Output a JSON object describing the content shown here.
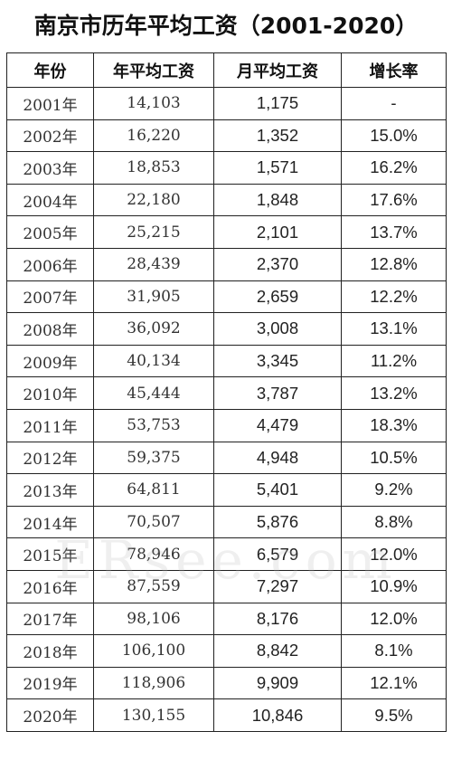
{
  "title": "南京市历年平均工资（2001-2020）",
  "headers": [
    "年份",
    "年平均工资",
    "月平均工资",
    "增长率"
  ],
  "rows": [
    {
      "year": "2001年",
      "annual": "14,103",
      "monthly": "1,175",
      "growth": "-"
    },
    {
      "year": "2002年",
      "annual": "16,220",
      "monthly": "1,352",
      "growth": "15.0%"
    },
    {
      "year": "2003年",
      "annual": "18,853",
      "monthly": "1,571",
      "growth": "16.2%"
    },
    {
      "year": "2004年",
      "annual": "22,180",
      "monthly": "1,848",
      "growth": "17.6%"
    },
    {
      "year": "2005年",
      "annual": "25,215",
      "monthly": "2,101",
      "growth": "13.7%"
    },
    {
      "year": "2006年",
      "annual": "28,439",
      "monthly": "2,370",
      "growth": "12.8%"
    },
    {
      "year": "2007年",
      "annual": "31,905",
      "monthly": "2,659",
      "growth": "12.2%"
    },
    {
      "year": "2008年",
      "annual": "36,092",
      "monthly": "3,008",
      "growth": "13.1%"
    },
    {
      "year": "2009年",
      "annual": "40,134",
      "monthly": "3,345",
      "growth": "11.2%"
    },
    {
      "year": "2010年",
      "annual": "45,444",
      "monthly": "3,787",
      "growth": "13.2%"
    },
    {
      "year": "2011年",
      "annual": "53,753",
      "monthly": "4,479",
      "growth": "18.3%"
    },
    {
      "year": "2012年",
      "annual": "59,375",
      "monthly": "4,948",
      "growth": "10.5%"
    },
    {
      "year": "2013年",
      "annual": "64,811",
      "monthly": "5,401",
      "growth": "9.2%"
    },
    {
      "year": "2014年",
      "annual": "70,507",
      "monthly": "5,876",
      "growth": "8.8%"
    },
    {
      "year": "2015年",
      "annual": "78,946",
      "monthly": "6,579",
      "growth": "12.0%"
    },
    {
      "year": "2016年",
      "annual": "87,559",
      "monthly": "7,297",
      "growth": "10.9%"
    },
    {
      "year": "2017年",
      "annual": "98,106",
      "monthly": "8,176",
      "growth": "12.0%"
    },
    {
      "year": "2018年",
      "annual": "106,100",
      "monthly": "8,842",
      "growth": "8.1%"
    },
    {
      "year": "2019年",
      "annual": "118,906",
      "monthly": "9,909",
      "growth": "12.1%"
    },
    {
      "year": "2020年",
      "annual": "130,155",
      "monthly": "10,846",
      "growth": "9.5%"
    }
  ],
  "watermark": "ERsee.com"
}
